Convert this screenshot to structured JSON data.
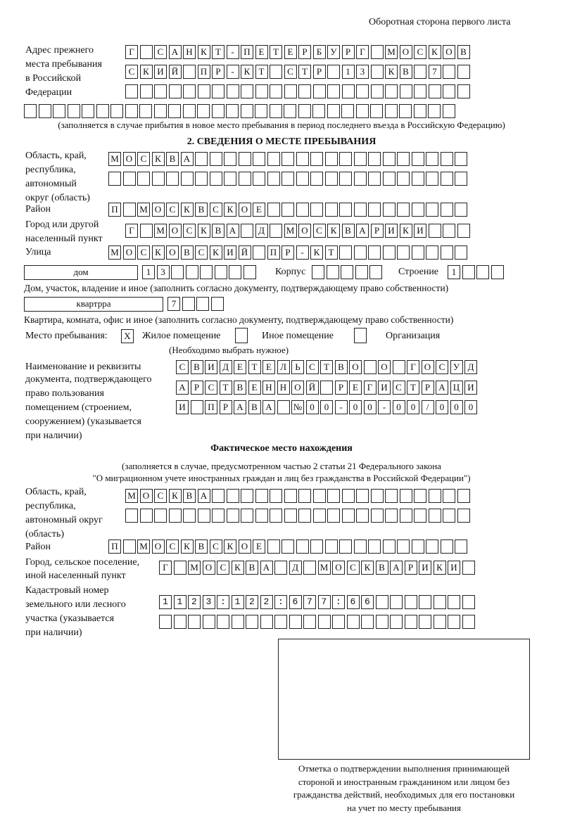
{
  "header": {
    "side_note": "Оборотная сторона первого листа"
  },
  "previous_address": {
    "label": "Адрес прежнего места пребывания в Российской Федерации",
    "label_lines": [
      "Адрес прежнего",
      "места пребывания",
      "в Российской",
      "Федерации"
    ],
    "rows": [
      "Г САНКТ-ПЕТЕРБУРГ МОСКОВ",
      "СКИЙ ПР-КТ СТР 13 КВ 7",
      "",
      ""
    ],
    "note": "(заполняется в случае прибытия в новое место пребывания в период последнего въезда в Российскую Федерацию)"
  },
  "section2": {
    "title": "2. СВЕДЕНИЯ О МЕСТЕ ПРЕБЫВАНИЯ",
    "region_label": [
      "Область, край,",
      "республика,",
      "автономный",
      "округ (область)"
    ],
    "region_rows": [
      "МОСКВА",
      ""
    ],
    "district_label": "Район",
    "district": "П МОСКВСКОЕ",
    "city_label": [
      "Город или другой",
      "населенный пункт"
    ],
    "city": "Г МОСКВА Д МОСКВАРИКИ",
    "street_label": "Улица",
    "street": "МОСКОВСКИЙ ПР-КТ",
    "house_type": "дом",
    "house_number": "13",
    "korpus_label": "Корпус",
    "korpus": "",
    "stroenie_label": "Строение",
    "stroenie": "1",
    "house_caption": "Дом, участок, владение и иное (заполнить согласно документу, подтверждающему право собственности)",
    "apartment_type": "квартрра",
    "apartment_number": "7",
    "apartment_caption": "Квартира, комната, офис и иное (заполнить согласно документу, подтверждающему право собственности)",
    "stay_place_label": "Место пребывания:",
    "options": [
      {
        "label": "Жилое помещение",
        "mark": "X"
      },
      {
        "label": "Иное помещение",
        "mark": ""
      },
      {
        "label": "Организация",
        "mark": ""
      }
    ],
    "choose_note": "(Необходимо выбрать нужное)",
    "doc_label": [
      "Наименование и реквизиты",
      "документа, подтверждающего",
      "право пользования",
      "помещением (строением,",
      "сооружением) (указывается",
      "при наличии)"
    ],
    "doc_rows": [
      "СВИДЕТЕЛЬСТВО О ГОСУД",
      "АРСТВЕННОЙ РЕГИСТРАЦИ",
      "И ПРАВА №00-00-00/000"
    ]
  },
  "actual": {
    "title": "Фактическое место нахождения",
    "note_lines": [
      "(заполняется в случае, предусмотренном частью 2 статьи 21 Федерального закона",
      "\"О миграционном учете иностранных граждан и лиц без гражданства в Российской Федерации\")"
    ],
    "region_label": [
      "Область, край,",
      "республика,",
      "автономный округ",
      "(область)"
    ],
    "region_rows": [
      "МОСКВА",
      ""
    ],
    "district_label": "Район",
    "district": "П МОСКВСКОЕ",
    "city_label": [
      "Город, сельское поселение,",
      "иной населенный пункт"
    ],
    "city": "Г МОСКВА Д МОСКВАРИКИ",
    "cadastral_label": [
      "Кадастровый номер",
      "земельного или лесного",
      "участка (указывается",
      "при наличии)"
    ],
    "cadastral_rows": [
      "1123:122:677:66",
      ""
    ]
  },
  "stamp": {
    "caption_lines": [
      "Отметка о подтверждении выполнения принимающей",
      "стороной и иностранным гражданином или лицом без",
      "гражданства действий, необходимых для его постановки",
      "на учет по месту пребывания"
    ]
  }
}
